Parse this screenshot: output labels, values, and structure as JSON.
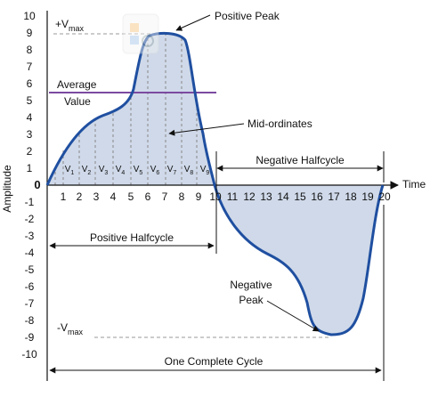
{
  "title": "",
  "axes": {
    "y_label": "Amplitude",
    "x_label": "Time",
    "y_ticks": [
      "10",
      "9",
      "8",
      "7",
      "6",
      "5",
      "4",
      "3",
      "2",
      "1",
      "0",
      "-1",
      "-2",
      "-3",
      "-4",
      "-5",
      "-6",
      "-7",
      "-8",
      "-9",
      "-10"
    ],
    "x_ticks": [
      "1",
      "2",
      "3",
      "4",
      "5",
      "6",
      "7",
      "8",
      "9",
      "10",
      "11",
      "12",
      "13",
      "14",
      "15",
      "16",
      "17",
      "18",
      "19",
      "20"
    ],
    "y_range": [
      -10,
      10
    ],
    "x_range": [
      0,
      20
    ]
  },
  "labels": {
    "vmax_pos_prefix": "+V",
    "vmax_pos_sub": "max",
    "vmax_neg_prefix": "-V",
    "vmax_neg_sub": "max",
    "positive_peak": "Positive Peak",
    "average_line1": "Average",
    "average_line2": "Value",
    "mid_ordinates": "Mid-ordinates",
    "negative_halfcycle": "Negative Halfcycle",
    "positive_halfcycle": "Positive Halfcycle",
    "negative_peak_line1": "Negative",
    "negative_peak_line2": "Peak",
    "one_complete_cycle": "One Complete Cycle"
  },
  "mid_ordinates": [
    {
      "v": "V",
      "sub": "1"
    },
    {
      "v": "V",
      "sub": "2"
    },
    {
      "v": "V",
      "sub": "3"
    },
    {
      "v": "V",
      "sub": "4"
    },
    {
      "v": "V",
      "sub": "5"
    },
    {
      "v": "V",
      "sub": "6"
    },
    {
      "v": "V",
      "sub": "7"
    },
    {
      "v": "V",
      "sub": "8"
    },
    {
      "v": "V",
      "sub": "9"
    }
  ],
  "values": {
    "vmax": 9,
    "average": 5.3
  },
  "colors": {
    "waveform": "#1f4fa0",
    "fill": "#cfd9e9",
    "average_line": "#7b4aa0",
    "dashed": "#999999",
    "axis": "#111111"
  },
  "icons": {
    "watermark": "app-watermark-icon"
  }
}
